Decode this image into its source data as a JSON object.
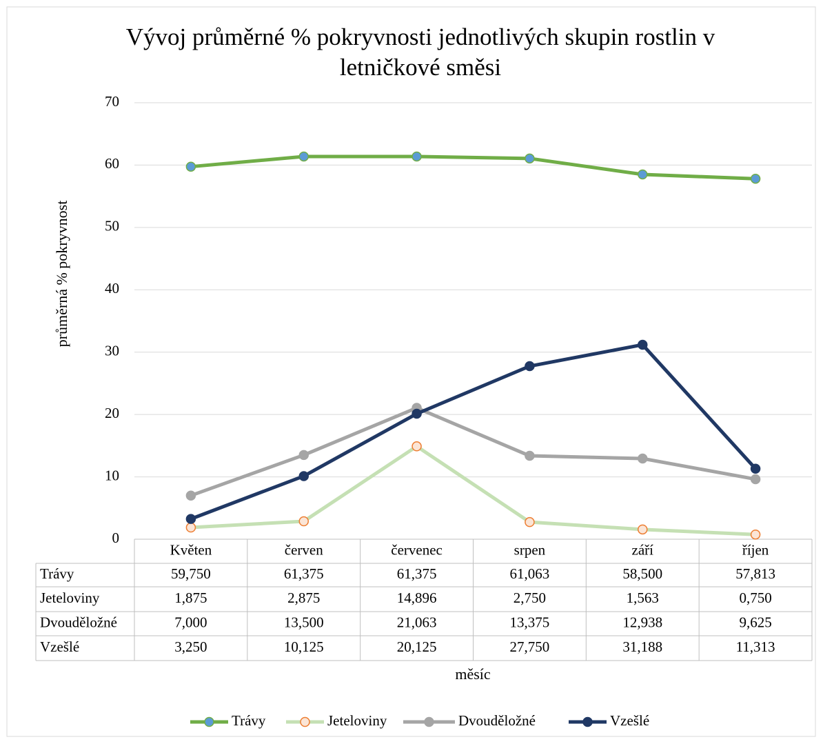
{
  "chart_data": {
    "type": "line",
    "title": "Vývoj průměrné % pokryvnosti jednotlivých skupin rostlin v letničkové směsi",
    "y_label": "průměrná % pokryvnost",
    "x_label": "měsíc",
    "categories": [
      "Květen",
      "červen",
      "červenec",
      "srpen",
      "září",
      "říjen"
    ],
    "series": [
      {
        "name": "Trávy",
        "color": "#70ad47",
        "marker_color": "#5b9bd5",
        "values": [
          59.75,
          61.375,
          61.375,
          61.063,
          58.5,
          57.813
        ],
        "value_labels": [
          "59,750",
          "61,375",
          "61,375",
          "61,063",
          "58,500",
          "57,813"
        ]
      },
      {
        "name": "Jeteloviny",
        "color": "#c5e0b4",
        "marker_color": "#ed7d31",
        "values": [
          1.875,
          2.875,
          14.896,
          2.75,
          1.563,
          0.75
        ],
        "value_labels": [
          "1,875",
          "2,875",
          "14,896",
          "2,750",
          "1,563",
          "0,750"
        ]
      },
      {
        "name": "Dvouděložné",
        "color": "#a5a5a5",
        "marker_color": "#a5a5a5",
        "values": [
          7.0,
          13.5,
          21.063,
          13.375,
          12.938,
          9.625
        ],
        "value_labels": [
          "7,000",
          "13,500",
          "21,063",
          "13,375",
          "12,938",
          "9,625"
        ]
      },
      {
        "name": "Vzešlé",
        "color": "#203864",
        "marker_color": "#203864",
        "values": [
          3.25,
          10.125,
          20.125,
          27.75,
          31.188,
          11.313
        ],
        "value_labels": [
          "3,250",
          "10,125",
          "20,125",
          "27,750",
          "31,188",
          "11,313"
        ]
      }
    ],
    "ylim": [
      0,
      70
    ],
    "yticks": [
      0,
      10,
      20,
      30,
      40,
      50,
      60,
      70
    ],
    "grid": true,
    "legend": "bottom"
  }
}
